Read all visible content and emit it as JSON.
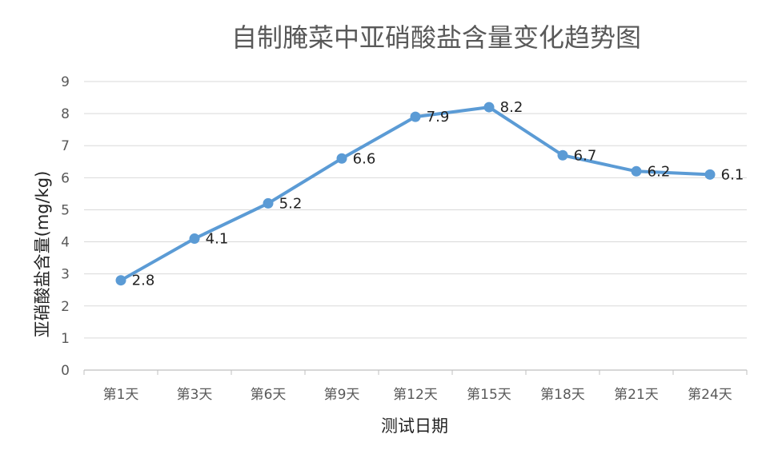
{
  "chart_data": {
    "type": "line",
    "title": "自制腌菜中亚硝酸盐含量变化趋势图",
    "xlabel": "测试日期",
    "ylabel": "亚硝酸盐含量(mg/kg)",
    "categories": [
      "第1天",
      "第3天",
      "第6天",
      "第9天",
      "第12天",
      "第15天",
      "第18天",
      "第21天",
      "第24天"
    ],
    "series": [
      {
        "values": [
          2.8,
          4.1,
          5.2,
          6.6,
          7.9,
          8.2,
          6.7,
          6.2,
          6.1
        ]
      }
    ],
    "data_labels": [
      "2.8",
      "4.1",
      "5.2",
      "6.6",
      "7.9",
      "8.2",
      "6.7",
      "6.2",
      "6.1"
    ],
    "ylim": [
      0,
      9
    ],
    "yticks": [
      "0",
      "1",
      "2",
      "3",
      "4",
      "5",
      "6",
      "7",
      "8",
      "9"
    ],
    "grid": true,
    "legend": "none",
    "colors": {
      "line": "#5b9bd5",
      "grid": "#d9d9d9",
      "axis": "#bfbfbf"
    }
  }
}
